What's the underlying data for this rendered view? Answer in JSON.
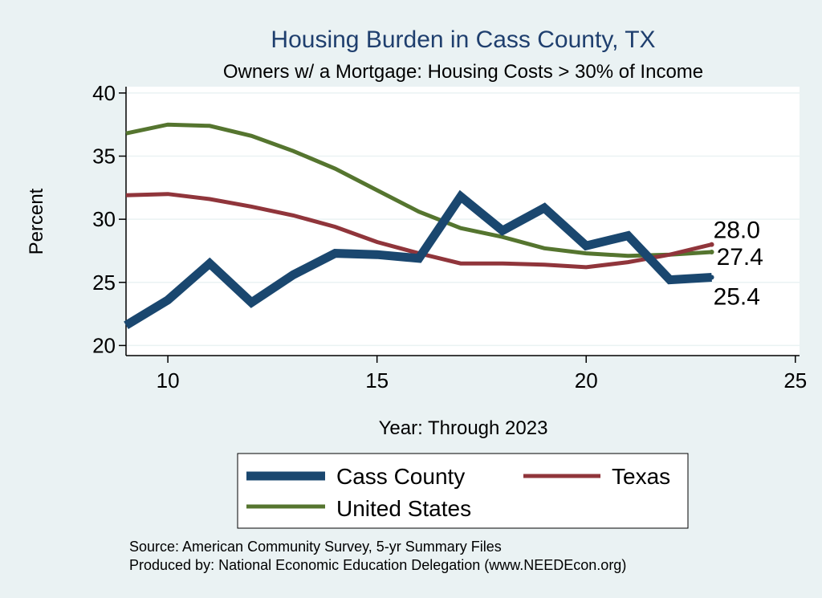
{
  "chart_data": {
    "type": "line",
    "title": "Housing Burden in Cass County, TX",
    "subtitle": "Owners w/ a Mortgage: Housing Costs > 30% of Income",
    "xlabel": "Year: Through 2023",
    "ylabel": "Percent",
    "xlim": [
      9,
      25.1
    ],
    "ylim": [
      19.2,
      40.5
    ],
    "x_ticks": [
      10,
      15,
      20,
      25
    ],
    "y_ticks": [
      20,
      25,
      30,
      35,
      40
    ],
    "grid": true,
    "legend_position": "bottom",
    "x": [
      9,
      10,
      11,
      12,
      13,
      14,
      15,
      16,
      17,
      18,
      19,
      20,
      21,
      22,
      23
    ],
    "series": [
      {
        "name": "Cass County",
        "color": "#1a476f",
        "values": [
          21.6,
          23.6,
          26.5,
          23.4,
          25.6,
          27.3,
          27.2,
          26.9,
          31.8,
          29.1,
          30.9,
          27.9,
          28.7,
          25.2,
          25.4
        ],
        "end_label": "25.4"
      },
      {
        "name": "Texas",
        "color": "#90353b",
        "values": [
          31.9,
          32.0,
          31.6,
          31.0,
          30.3,
          29.4,
          28.2,
          27.3,
          26.5,
          26.5,
          26.4,
          26.2,
          26.6,
          27.2,
          28.0
        ],
        "end_label": "28.0"
      },
      {
        "name": "United States",
        "color": "#55752f",
        "values": [
          36.8,
          37.5,
          37.4,
          36.6,
          35.4,
          34.0,
          32.3,
          30.6,
          29.3,
          28.6,
          27.7,
          27.3,
          27.1,
          27.2,
          27.4
        ],
        "end_label": "27.4"
      }
    ]
  },
  "footer": {
    "source_line": "Source: American Community Survey, 5-yr Summary Files",
    "produced_line": "Produced by: National Economic Education Delegation (www.NEEDEcon.org)"
  }
}
